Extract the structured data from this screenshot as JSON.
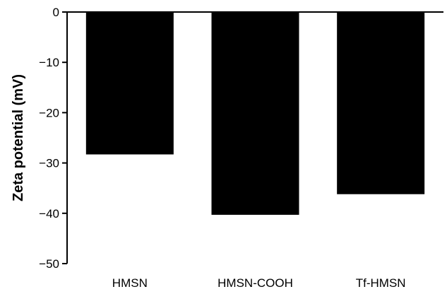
{
  "chart_data": {
    "type": "bar",
    "title": "",
    "xlabel": "",
    "ylabel": "Zeta potential (mV)",
    "categories": [
      "HMSN",
      "HMSN-COOH",
      "Tf-HMSN"
    ],
    "values": [
      -28.3,
      -40.3,
      -36.2
    ],
    "ylim": [
      -50,
      0
    ],
    "yticks": [
      0,
      -10,
      -20,
      -30,
      -40,
      -50
    ],
    "ytick_labels": [
      "0",
      "−10",
      "−20",
      "−30",
      "−40",
      "−50"
    ],
    "grid": false,
    "bar_color": "#000000"
  }
}
